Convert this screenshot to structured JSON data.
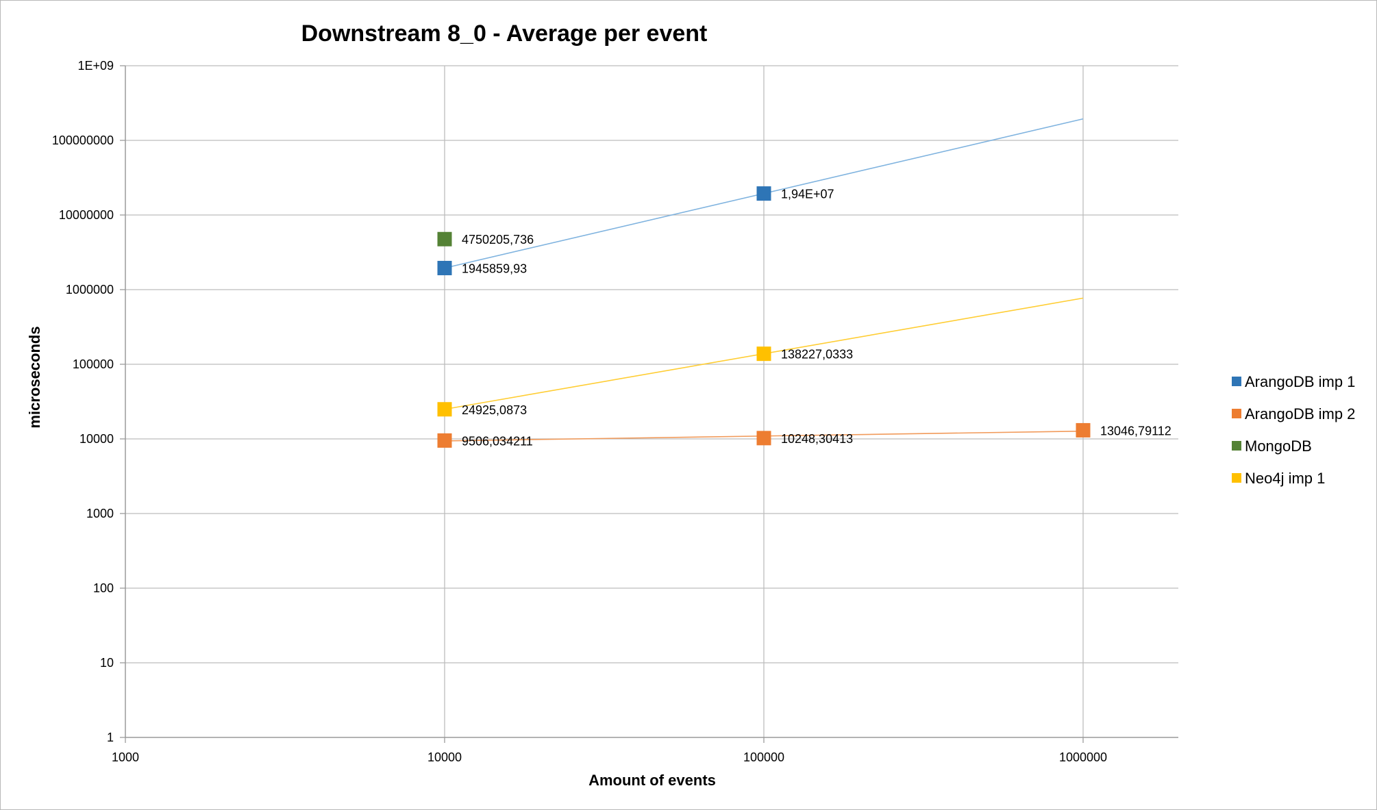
{
  "chart_data": {
    "type": "scatter",
    "title": "Downstream 8_0 - Average per event",
    "xlabel": "Amount of events",
    "ylabel": "microseconds",
    "x_scale": "log",
    "y_scale": "log",
    "xlim": [
      1000,
      2000000
    ],
    "ylim": [
      1,
      1000000000
    ],
    "x_ticks": [
      "1000",
      "10000",
      "100000",
      "1000000"
    ],
    "y_ticks": [
      "1",
      "10",
      "100",
      "1000",
      "10000",
      "100000",
      "1000000",
      "10000000",
      "100000000",
      "1E+09"
    ],
    "grid": true,
    "legend_position": "right",
    "series": [
      {
        "name": "ArangoDB imp 1",
        "color": "#2e75b6",
        "trend_color": "#7fb3df",
        "points": [
          {
            "x": 10000,
            "y": 1945859.93,
            "label": "1945859,93"
          },
          {
            "x": 100000,
            "y": 19400000,
            "label": "1,94E+07"
          }
        ],
        "trendline": {
          "x": [
            10000,
            1000000
          ],
          "y": [
            1945859.93,
            194000000
          ]
        }
      },
      {
        "name": "ArangoDB imp 2",
        "color": "#ed7d31",
        "trend_color": "#f19a5a",
        "points": [
          {
            "x": 10000,
            "y": 9506.034211,
            "label": "9506,034211"
          },
          {
            "x": 100000,
            "y": 10248.30413,
            "label": "10248,30413"
          },
          {
            "x": 1000000,
            "y": 13046.79112,
            "label": "13046,79112"
          }
        ],
        "trendline": {
          "x": [
            10000,
            1000000
          ],
          "y": [
            9400,
            12700
          ]
        }
      },
      {
        "name": "MongoDB",
        "color": "#548235",
        "points": [
          {
            "x": 10000,
            "y": 4750205.736,
            "label": "4750205,736"
          }
        ]
      },
      {
        "name": "Neo4j imp 1",
        "color": "#ffc000",
        "trend_color": "#ffcd33",
        "points": [
          {
            "x": 10000,
            "y": 24925.0873,
            "label": "24925,0873"
          },
          {
            "x": 100000,
            "y": 138227.0333,
            "label": "138227,0333"
          }
        ],
        "trendline": {
          "x": [
            10000,
            1000000
          ],
          "y": [
            24925.0873,
            770000
          ]
        }
      }
    ]
  }
}
